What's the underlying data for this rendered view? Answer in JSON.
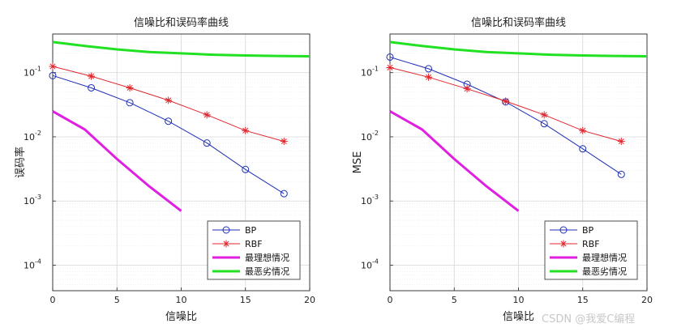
{
  "watermark": "CSDN @我爱C编程",
  "chart_data": [
    {
      "type": "line",
      "title": "信噪比和误码率曲线",
      "xlabel": "信噪比",
      "ylabel": "误码率",
      "xlim": [
        0,
        20
      ],
      "ylim": [
        4e-05,
        0.4
      ],
      "yscale": "log",
      "grid": true,
      "legend_position": "bottom-right",
      "x_ticks": [
        "0",
        "5",
        "10",
        "15",
        "20"
      ],
      "y_ticks": [
        {
          "base": "10",
          "exp": "-4",
          "value": 0.0001
        },
        {
          "base": "10",
          "exp": "-3",
          "value": 0.001
        },
        {
          "base": "10",
          "exp": "-2",
          "value": 0.01
        },
        {
          "base": "10",
          "exp": "-1",
          "value": 0.1
        }
      ],
      "series": [
        {
          "name": "BP",
          "color": "#1f2fb5",
          "marker": "circle",
          "width": 1,
          "x": [
            0,
            3,
            6,
            9,
            12,
            15,
            18
          ],
          "y": [
            0.09,
            0.058,
            0.034,
            0.0175,
            0.008,
            0.0031,
            0.0013
          ]
        },
        {
          "name": "RBF",
          "color": "#e0262d",
          "marker": "star",
          "width": 1,
          "x": [
            0,
            3,
            6,
            9,
            12,
            15,
            18
          ],
          "y": [
            0.125,
            0.088,
            0.058,
            0.037,
            0.022,
            0.0125,
            0.0085
          ]
        },
        {
          "name": "最理想情况",
          "color": "#e020e0",
          "marker": "none",
          "width": 3,
          "x": [
            0,
            2.5,
            5,
            7.5,
            10
          ],
          "y": [
            0.025,
            0.013,
            0.0045,
            0.0017,
            0.0007
          ]
        },
        {
          "name": "最恶劣情况",
          "color": "#22e022",
          "marker": "none",
          "width": 3,
          "x": [
            0,
            2.5,
            5,
            7.5,
            10,
            12.5,
            15,
            17.5,
            20
          ],
          "y": [
            0.3,
            0.26,
            0.23,
            0.21,
            0.2,
            0.19,
            0.185,
            0.182,
            0.18
          ]
        }
      ]
    },
    {
      "type": "line",
      "title": "信噪比和误码率曲线",
      "xlabel": "信噪比",
      "ylabel": "MSE",
      "xlim": [
        0,
        20
      ],
      "ylim": [
        4e-05,
        0.4
      ],
      "yscale": "log",
      "grid": true,
      "legend_position": "bottom-right",
      "x_ticks": [
        "0",
        "5",
        "10",
        "15",
        "20"
      ],
      "y_ticks": [
        {
          "base": "10",
          "exp": "-4",
          "value": 0.0001
        },
        {
          "base": "10",
          "exp": "-3",
          "value": 0.001
        },
        {
          "base": "10",
          "exp": "-2",
          "value": 0.01
        },
        {
          "base": "10",
          "exp": "-1",
          "value": 0.1
        }
      ],
      "series": [
        {
          "name": "BP",
          "color": "#1f2fb5",
          "marker": "circle",
          "width": 1,
          "x": [
            0,
            3,
            6,
            9,
            12,
            15,
            18
          ],
          "y": [
            0.175,
            0.115,
            0.066,
            0.035,
            0.016,
            0.0065,
            0.0026
          ]
        },
        {
          "name": "RBF",
          "color": "#e0262d",
          "marker": "star",
          "width": 1,
          "x": [
            0,
            3,
            6,
            9,
            12,
            15,
            18
          ],
          "y": [
            0.12,
            0.085,
            0.056,
            0.036,
            0.022,
            0.0125,
            0.0085
          ]
        },
        {
          "name": "最理想情况",
          "color": "#e020e0",
          "marker": "none",
          "width": 3,
          "x": [
            0,
            2.5,
            5,
            7.5,
            10
          ],
          "y": [
            0.025,
            0.013,
            0.0045,
            0.0017,
            0.0007
          ]
        },
        {
          "name": "最恶劣情况",
          "color": "#22e022",
          "marker": "none",
          "width": 3,
          "x": [
            0,
            2.5,
            5,
            7.5,
            10,
            12.5,
            15,
            17.5,
            20
          ],
          "y": [
            0.3,
            0.26,
            0.23,
            0.21,
            0.2,
            0.19,
            0.185,
            0.182,
            0.18
          ]
        }
      ]
    }
  ]
}
